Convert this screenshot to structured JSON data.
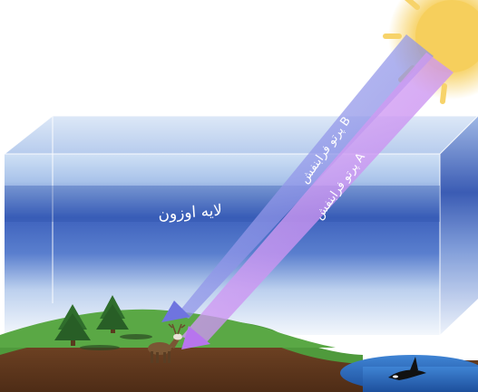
{
  "labels": {
    "ozone_layer": "لایه اوزون",
    "radiation_b": "پرتو فرابنفش B",
    "radiation_a": "پرتو فرابنفش A"
  },
  "colors": {
    "sun": "#f7d36a",
    "ozone_band": "#3b5fb8",
    "atmosphere_box": "#b9cdee",
    "beam_b": "#8a8de8",
    "beam_a": "#c88ff0",
    "grass": "#4f9a3c",
    "soil": "#6a3f22",
    "water": "#2f6fc2"
  },
  "icons": [
    "sun-icon",
    "tree-icon",
    "reindeer-icon",
    "orca-icon"
  ]
}
